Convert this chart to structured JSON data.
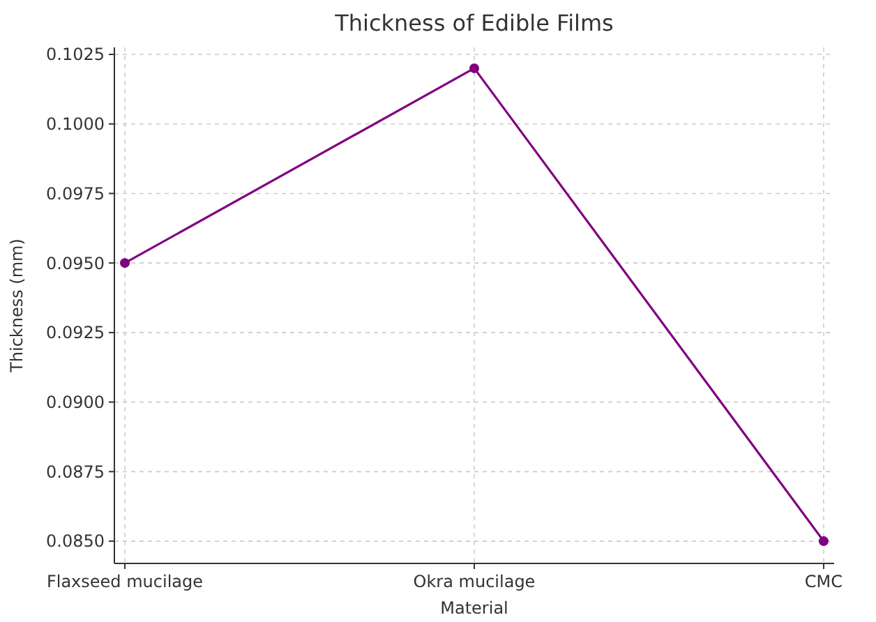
{
  "chart_data": {
    "type": "line",
    "title": "Thickness of Edible Films",
    "xlabel": "Material",
    "ylabel": "Thickness (mm)",
    "categories": [
      "Flaxseed mucilage",
      "Okra mucilage",
      "CMC"
    ],
    "series": [
      {
        "color": "#800080",
        "values": [
          0.095,
          0.102,
          0.085
        ]
      }
    ],
    "ylim": [
      0.0842,
      0.10275
    ],
    "yticks": [
      {
        "value": 0.085,
        "label": "0.0850"
      },
      {
        "value": 0.0875,
        "label": "0.0875"
      },
      {
        "value": 0.09,
        "label": "0.0900"
      },
      {
        "value": 0.0925,
        "label": "0.0925"
      },
      {
        "value": 0.095,
        "label": "0.0950"
      },
      {
        "value": 0.0975,
        "label": "0.0975"
      },
      {
        "value": 0.1,
        "label": "0.1000"
      },
      {
        "value": 0.1025,
        "label": "0.1025"
      }
    ],
    "grid": true,
    "marker": "circle",
    "line_style": "solid"
  }
}
